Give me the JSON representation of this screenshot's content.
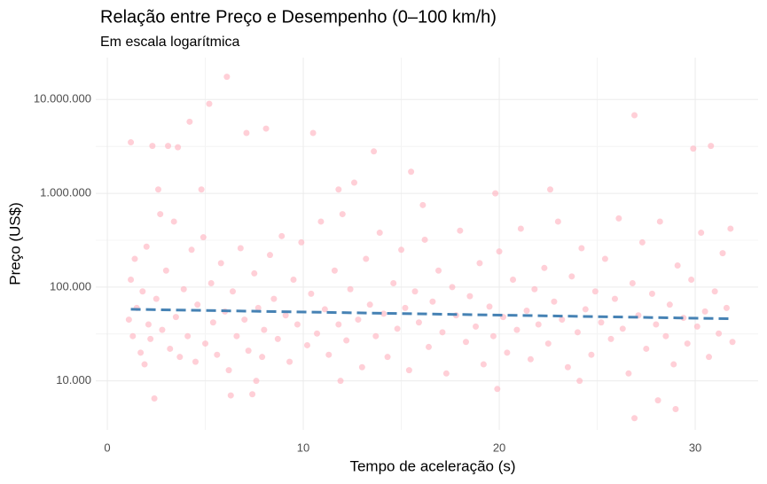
{
  "chart_data": {
    "type": "scatter",
    "title": "Relação entre Preço e Desempenho (0–100 km/h)",
    "subtitle": "Em escala logarítmica",
    "x_label": "Tempo de aceleração (s)",
    "y_label": "Preço (US$)",
    "log_y": true,
    "grid": true,
    "color": "#ffb6c1",
    "xlim": [
      -0.59,
      33.21
    ],
    "ylim": [
      3000,
      28000000
    ],
    "xticks": [
      0,
      10,
      20,
      30
    ],
    "yticks": [
      {
        "value": 10000,
        "label": "10.000"
      },
      {
        "value": 100000,
        "label": "100.000"
      },
      {
        "value": 1000000,
        "label": "1.000.000"
      },
      {
        "value": 10000000,
        "label": "10.000.000"
      }
    ],
    "xminor": [
      5,
      15,
      25
    ],
    "yminor": [
      31623,
      316228,
      3162278
    ],
    "x": [
      6.1,
      5.2,
      4.2,
      1.2,
      2.3,
      3.1,
      3.6,
      7.1,
      8.1,
      10.5,
      13.6,
      15.5,
      26.9,
      29.9,
      30.8,
      19.8,
      22.6,
      4.8,
      2.6,
      12.6,
      11.8,
      16.1,
      2.4,
      6.3,
      7.4,
      26.9,
      29.0,
      28.1,
      19.9,
      7.6,
      1.1,
      1.2,
      1.3,
      1.4,
      1.5,
      1.7,
      1.8,
      1.9,
      2.0,
      2.1,
      2.2,
      2.5,
      2.7,
      2.8,
      3.0,
      3.2,
      3.4,
      3.5,
      3.7,
      3.9,
      4.1,
      4.3,
      4.5,
      4.6,
      4.9,
      5.0,
      5.3,
      5.4,
      5.6,
      5.8,
      6.0,
      6.2,
      6.4,
      6.6,
      6.8,
      7.0,
      7.2,
      7.5,
      7.7,
      7.9,
      8.0,
      8.3,
      8.5,
      8.7,
      8.9,
      9.1,
      9.3,
      9.5,
      9.7,
      9.9,
      10.2,
      10.4,
      10.7,
      10.9,
      11.1,
      11.3,
      11.6,
      11.8,
      12.0,
      12.2,
      12.4,
      12.8,
      13.0,
      13.2,
      13.4,
      13.7,
      13.9,
      14.1,
      14.3,
      14.6,
      14.8,
      15.0,
      15.2,
      15.4,
      15.7,
      15.9,
      16.2,
      16.4,
      16.6,
      16.9,
      17.1,
      17.3,
      17.6,
      17.8,
      18.0,
      18.3,
      18.5,
      18.8,
      19.0,
      19.2,
      19.5,
      19.7,
      20.0,
      20.2,
      20.4,
      20.7,
      20.9,
      21.1,
      21.4,
      21.6,
      21.8,
      22.0,
      22.3,
      22.5,
      22.8,
      23.0,
      23.2,
      23.5,
      23.7,
      24.0,
      24.2,
      24.4,
      24.7,
      24.9,
      25.2,
      25.4,
      25.7,
      25.9,
      26.1,
      26.3,
      26.6,
      26.8,
      27.1,
      27.3,
      27.5,
      27.8,
      28.0,
      28.2,
      28.5,
      28.7,
      28.9,
      29.1,
      29.4,
      29.6,
      29.8,
      30.1,
      30.3,
      30.5,
      30.7,
      31.0,
      31.2,
      31.4,
      31.6,
      31.8,
      31.9,
      11.9,
      24.1
    ],
    "values": [
      17500000,
      9000000,
      5800000,
      3500000,
      3200000,
      3200000,
      3100000,
      4400000,
      4900000,
      4400000,
      2800000,
      1700000,
      6800000,
      3000000,
      3200000,
      1000000,
      1100000,
      1100000,
      1100000,
      1300000,
      1100000,
      750000,
      6500,
      7000,
      7200,
      4000,
      5000,
      6200,
      8200,
      10000,
      45000,
      120000,
      30000,
      200000,
      60000,
      20000,
      90000,
      15000,
      270000,
      40000,
      28000,
      75000,
      600000,
      35000,
      150000,
      22000,
      500000,
      48000,
      18000,
      95000,
      30000,
      250000,
      16000,
      65000,
      340000,
      25000,
      110000,
      42000,
      19000,
      180000,
      55000,
      13000,
      90000,
      30000,
      260000,
      45000,
      21000,
      140000,
      60000,
      18000,
      35000,
      220000,
      75000,
      28000,
      350000,
      50000,
      16000,
      120000,
      40000,
      300000,
      24000,
      85000,
      32000,
      500000,
      58000,
      19000,
      150000,
      40000,
      600000,
      27000,
      95000,
      45000,
      14000,
      200000,
      65000,
      30000,
      380000,
      52000,
      18000,
      110000,
      36000,
      250000,
      60000,
      13000,
      90000,
      42000,
      320000,
      23000,
      70000,
      150000,
      33000,
      12000,
      100000,
      50000,
      400000,
      26000,
      80000,
      38000,
      180000,
      15000,
      62000,
      30000,
      240000,
      48000,
      20000,
      120000,
      35000,
      420000,
      56000,
      17000,
      95000,
      40000,
      160000,
      25000,
      70000,
      500000,
      45000,
      14000,
      130000,
      33000,
      260000,
      58000,
      19000,
      90000,
      42000,
      200000,
      28000,
      75000,
      540000,
      36000,
      12000,
      110000,
      50000,
      300000,
      22000,
      85000,
      40000,
      500000,
      30000,
      65000,
      15000,
      170000,
      47000,
      25000,
      120000,
      38000,
      380000,
      55000,
      18000,
      90000,
      32000,
      230000,
      60000,
      420000,
      26000,
      10000,
      10000
    ],
    "trend": {
      "color": "#4682b4",
      "x": [
        1.2,
        31.8
      ],
      "values": [
        58000,
        46000
      ]
    }
  }
}
